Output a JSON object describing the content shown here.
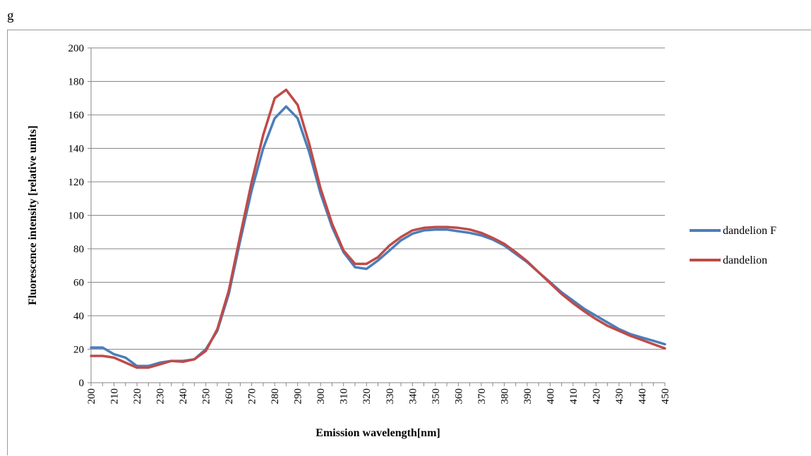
{
  "panel_label": "g",
  "colors": {
    "dandelion F": "#4a7ebb",
    "dandelion": "#be4b48",
    "grid": "#868686"
  },
  "chart_data": {
    "type": "line",
    "title": "",
    "xlabel": "Emission wavelength[nm]",
    "ylabel": "Fluorescence intensity [relative units]",
    "ylim": [
      0,
      200
    ],
    "yticks": [
      0,
      20,
      40,
      60,
      80,
      100,
      120,
      140,
      160,
      180,
      200
    ],
    "xticks": [
      200,
      210,
      220,
      230,
      240,
      250,
      260,
      270,
      280,
      290,
      300,
      310,
      320,
      330,
      340,
      350,
      360,
      370,
      380,
      390,
      400,
      410,
      420,
      430,
      440,
      450
    ],
    "grid": true,
    "legend_position": "right",
    "x": [
      200,
      205,
      210,
      215,
      220,
      225,
      230,
      235,
      240,
      245,
      250,
      255,
      260,
      265,
      270,
      275,
      280,
      285,
      290,
      295,
      300,
      305,
      310,
      315,
      320,
      325,
      330,
      335,
      340,
      345,
      350,
      355,
      360,
      365,
      370,
      375,
      380,
      385,
      390,
      395,
      400,
      405,
      410,
      415,
      420,
      425,
      430,
      435,
      440,
      445,
      450
    ],
    "series": [
      {
        "name": "dandelion F",
        "values": [
          21,
          21,
          17,
          15,
          10,
          10,
          12,
          13,
          13,
          14,
          20,
          31,
          53,
          85,
          115,
          140,
          158,
          165,
          158,
          138,
          113,
          93,
          78,
          69,
          68,
          73,
          79,
          85,
          89,
          91,
          91.5,
          91.5,
          90.5,
          89.5,
          88,
          85.5,
          82,
          77,
          72,
          66,
          60,
          54,
          49,
          44,
          40,
          36,
          32,
          29,
          27,
          25,
          23
        ]
      },
      {
        "name": "dandelion",
        "values": [
          16,
          16,
          15,
          12,
          9,
          9,
          11,
          13,
          12.5,
          14,
          19,
          32,
          55,
          88,
          120,
          148,
          170,
          175,
          166,
          143,
          116,
          95,
          79,
          71,
          71,
          75,
          82,
          87,
          91,
          92.5,
          93,
          93,
          92.5,
          91.5,
          89.5,
          86.5,
          83,
          78,
          72.5,
          66,
          59.5,
          53,
          47.5,
          42.5,
          38,
          34,
          31,
          28,
          25.5,
          23,
          20.5
        ]
      }
    ]
  }
}
